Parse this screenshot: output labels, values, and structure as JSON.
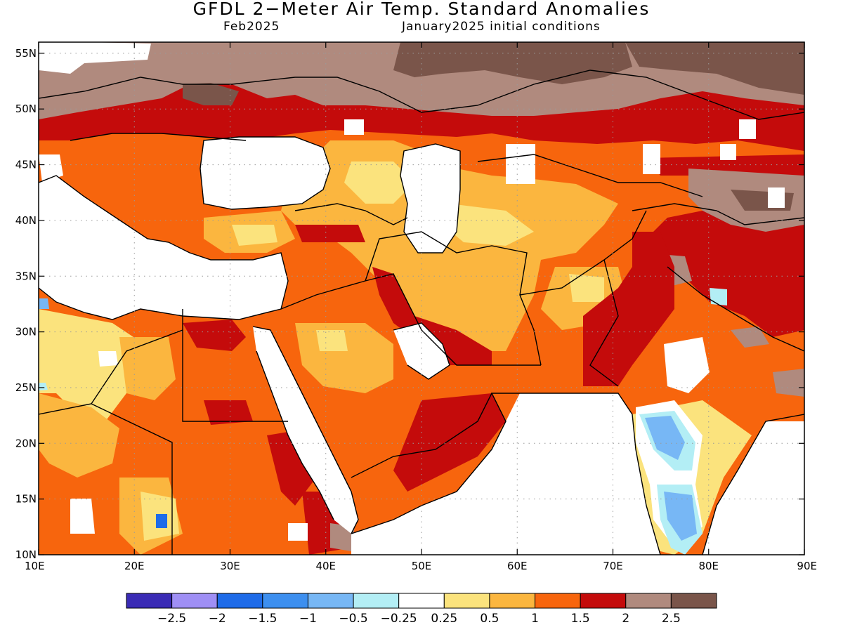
{
  "title": "GFDL 2−Meter Air Temp. Standard Anomalies",
  "subtitle_left": "Feb2025",
  "subtitle_right": "January2025 initial conditions",
  "map": {
    "lon_range": [
      10,
      90
    ],
    "lat_range": [
      10,
      56
    ],
    "lon_ticks": [
      {
        "value": 10,
        "label": "10E"
      },
      {
        "value": 20,
        "label": "20E"
      },
      {
        "value": 30,
        "label": "30E"
      },
      {
        "value": 40,
        "label": "40E"
      },
      {
        "value": 50,
        "label": "50E"
      },
      {
        "value": 60,
        "label": "60E"
      },
      {
        "value": 70,
        "label": "70E"
      },
      {
        "value": 80,
        "label": "80E"
      },
      {
        "value": 90,
        "label": "90E"
      }
    ],
    "lat_ticks": [
      {
        "value": 10,
        "label": "10N"
      },
      {
        "value": 15,
        "label": "15N"
      },
      {
        "value": 20,
        "label": "20N"
      },
      {
        "value": 25,
        "label": "25N"
      },
      {
        "value": 30,
        "label": "30N"
      },
      {
        "value": 35,
        "label": "35N"
      },
      {
        "value": 40,
        "label": "40N"
      },
      {
        "value": 45,
        "label": "45N"
      },
      {
        "value": 50,
        "label": "50N"
      },
      {
        "value": 55,
        "label": "55N"
      }
    ],
    "gridlines": "dotted"
  },
  "colorbar": {
    "colors": [
      "#3a2bb5",
      "#9f8ff5",
      "#1e6be8",
      "#3d8fef",
      "#77b7f5",
      "#b3eef5",
      "#ffffff",
      "#fbe37d",
      "#fbb63f",
      "#f7650d",
      "#c40b0b",
      "#b08a7e",
      "#7a554a"
    ],
    "labels": [
      "−2.5",
      "−2",
      "−1.5",
      "−1",
      "−0.5",
      "−0.25",
      "0.25",
      "0.5",
      "1",
      "1.5",
      "2",
      "2.5"
    ]
  }
}
